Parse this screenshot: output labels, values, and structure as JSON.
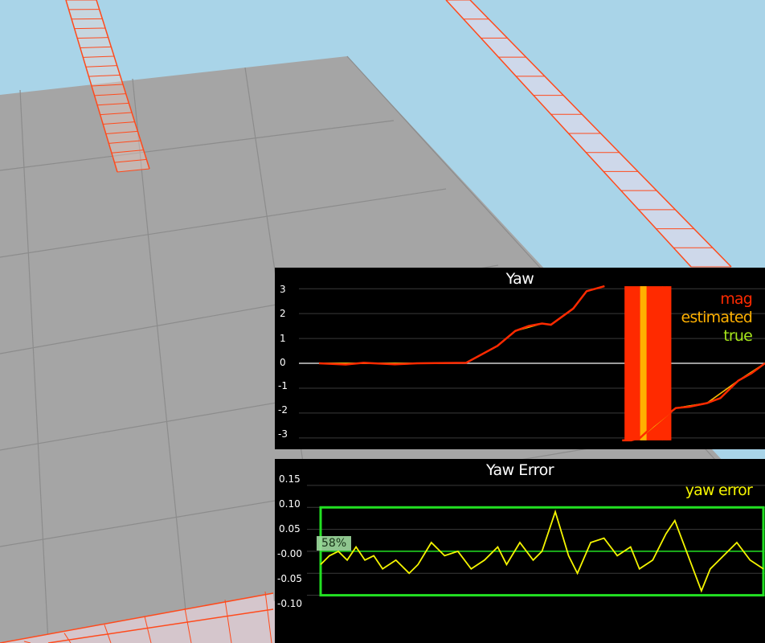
{
  "scene": {
    "sky_color": "#a9d4e8",
    "ground_color": "#a5a5a5",
    "ground_line_color": "#8a8a8a",
    "trajectory_color": "#ff4a1c"
  },
  "yaw_plot": {
    "title": "Yaw",
    "legend": [
      {
        "label": "mag",
        "color": "#ff2a00"
      },
      {
        "label": "estimated",
        "color": "#ffb000"
      },
      {
        "label": "true",
        "color": "#a6e61b"
      }
    ],
    "y_ticks": [
      "3",
      "2",
      "1",
      "0",
      "-1",
      "-2",
      "-3"
    ]
  },
  "yaw_error_plot": {
    "title": "Yaw Error",
    "legend": [
      {
        "label": "yaw error",
        "color": "#f5f500"
      }
    ],
    "y_ticks": [
      "0.15",
      "0.10",
      "0.05",
      "-0.00",
      "-0.05",
      "-0.10"
    ],
    "pass_badge": "58%",
    "box_color": "#22e022"
  },
  "chart_data": [
    {
      "type": "line",
      "title": "Yaw",
      "ylim": [
        -3.2,
        3.2
      ],
      "y_ticks": [
        3,
        2,
        1,
        0,
        -1,
        -2,
        -3
      ],
      "series": [
        {
          "name": "mag",
          "color": "#ff2a00",
          "x": [
            0,
            0.06,
            0.1,
            0.17,
            0.22,
            0.26,
            0.33,
            0.4,
            0.44,
            0.47,
            0.5,
            0.52,
            0.57,
            0.6,
            0.64,
            0.68,
            0.7,
            0.72,
            0.75,
            0.8,
            0.83,
            0.87,
            0.9,
            0.94,
            0.97,
            1.0
          ],
          "y": [
            0,
            -0.05,
            0.02,
            -0.04,
            0.0,
            0.01,
            0.02,
            0.7,
            1.3,
            1.5,
            1.6,
            1.55,
            2.2,
            2.9,
            3.1,
            -3.1,
            -3.1,
            -3.0,
            -2.5,
            -1.8,
            -1.75,
            -1.6,
            -1.4,
            -0.7,
            -0.4,
            0.0
          ]
        },
        {
          "name": "estimated",
          "color": "#ffb000",
          "x": [
            0,
            0.1,
            0.2,
            0.26,
            0.33,
            0.4,
            0.44,
            0.5,
            0.52,
            0.57,
            0.6,
            0.64,
            0.68,
            0.7,
            0.72,
            0.8,
            0.87,
            0.94,
            1.0
          ],
          "y": [
            0,
            0,
            0,
            0.0,
            0.02,
            0.7,
            1.3,
            1.6,
            1.55,
            2.2,
            2.9,
            3.1,
            -3.1,
            -3.1,
            -3.0,
            -1.8,
            -1.6,
            -0.7,
            0.0
          ]
        },
        {
          "name": "true",
          "color": "#a6e61b",
          "x": [
            0,
            0.2,
            0.26,
            0.33,
            0.4,
            0.44,
            0.5,
            0.52,
            0.57,
            0.6,
            0.64,
            0.68,
            0.7,
            0.72,
            0.8,
            0.87,
            0.94,
            1.0
          ],
          "y": [
            0,
            0,
            0.0,
            0.02,
            0.7,
            1.3,
            1.6,
            1.55,
            2.2,
            2.9,
            3.1,
            -3.1,
            -3.1,
            -3.0,
            -1.8,
            -1.6,
            -0.7,
            0.0
          ]
        }
      ]
    },
    {
      "type": "line",
      "title": "Yaw Error",
      "ylim": [
        -0.13,
        0.17
      ],
      "y_ticks": [
        0.15,
        0.1,
        0.05,
        -0.0,
        -0.05,
        -0.1
      ],
      "threshold_box": [
        -0.1,
        0.1
      ],
      "series": [
        {
          "name": "yaw error",
          "color": "#f5f500",
          "x": [
            0,
            0.02,
            0.04,
            0.06,
            0.08,
            0.1,
            0.12,
            0.14,
            0.17,
            0.2,
            0.22,
            0.25,
            0.28,
            0.31,
            0.34,
            0.37,
            0.4,
            0.42,
            0.45,
            0.48,
            0.5,
            0.53,
            0.56,
            0.58,
            0.61,
            0.64,
            0.67,
            0.7,
            0.72,
            0.75,
            0.78,
            0.8,
            0.83,
            0.86,
            0.88,
            0.91,
            0.94,
            0.97,
            1.0
          ],
          "y": [
            -0.03,
            -0.01,
            0.0,
            -0.02,
            0.01,
            -0.02,
            -0.01,
            -0.04,
            -0.02,
            -0.05,
            -0.03,
            0.02,
            -0.01,
            0.0,
            -0.04,
            -0.02,
            0.01,
            -0.03,
            0.02,
            -0.02,
            0.0,
            0.09,
            -0.01,
            -0.05,
            0.02,
            0.03,
            -0.01,
            0.01,
            -0.04,
            -0.02,
            0.04,
            0.07,
            -0.01,
            -0.09,
            -0.04,
            -0.01,
            0.02,
            -0.02,
            -0.04
          ]
        }
      ]
    }
  ]
}
